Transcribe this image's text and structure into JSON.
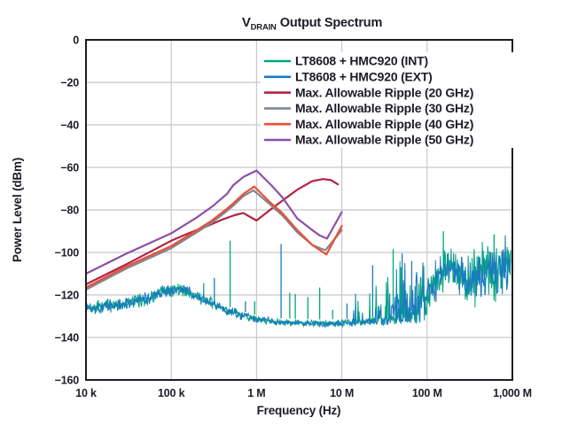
{
  "page": {
    "background": "#ffffff"
  },
  "chart_data": {
    "type": "line",
    "title": {
      "prefix": "V",
      "subscript": "DRAIN",
      "suffix": "Output Spectrum"
    },
    "xlabel": "Frequency (Hz)",
    "ylabel": "Power Level (dBm)",
    "x_scale": "log",
    "x_range_hz": [
      10000,
      1000000000
    ],
    "y_range_dbm": [
      -160,
      0
    ],
    "grid": true,
    "legend_position": "top-right",
    "colors": {
      "frame": "#1d1b26",
      "grid": "#c8c8c8",
      "text": "#1d1b26",
      "background": "#ffffff"
    },
    "x_ticks": [
      {
        "f": 10000.0,
        "label": "10 k"
      },
      {
        "f": 100000.0,
        "label": "100 k"
      },
      {
        "f": 1000000.0,
        "label": "1 M"
      },
      {
        "f": 10000000.0,
        "label": "10 M"
      },
      {
        "f": 100000000.0,
        "label": "100 M"
      },
      {
        "f": 1000000000.0,
        "label": "1,000 M"
      }
    ],
    "y_ticks": [
      {
        "v": 0,
        "label": "0"
      },
      {
        "v": -20,
        "label": "−20"
      },
      {
        "v": -40,
        "label": "−40"
      },
      {
        "v": -60,
        "label": "−60"
      },
      {
        "v": -80,
        "label": "−80"
      },
      {
        "v": -100,
        "label": "−100"
      },
      {
        "v": -120,
        "label": "−120"
      },
      {
        "v": -140,
        "label": "−140"
      },
      {
        "v": -160,
        "label": "−160"
      }
    ],
    "noise_envelope": [
      [
        10000.0,
        -126,
        3
      ],
      [
        25000.0,
        -124.5,
        3
      ],
      [
        50000.0,
        -122,
        3
      ],
      [
        80000.0,
        -118.5,
        3
      ],
      [
        120000.0,
        -117,
        3
      ],
      [
        180000.0,
        -119.5,
        2.8
      ],
      [
        260000.0,
        -123,
        2.5
      ],
      [
        400000.0,
        -126.5,
        2.2
      ],
      [
        600000.0,
        -129,
        2
      ],
      [
        1000000.0,
        -131.5,
        1.6
      ],
      [
        2000000.0,
        -133,
        1.4
      ],
      [
        6000000.0,
        -133.5,
        1.4
      ],
      [
        15000000.0,
        -133,
        1.6
      ],
      [
        30000000.0,
        -132,
        2
      ],
      [
        50000000.0,
        -131,
        2.5
      ],
      [
        70000000.0,
        -129,
        4
      ],
      [
        90000000.0,
        -124,
        8
      ],
      [
        120000000.0,
        -115,
        10
      ],
      [
        160000000.0,
        -108,
        9
      ],
      [
        200000000.0,
        -106,
        7
      ],
      [
        240000000.0,
        -110,
        9
      ],
      [
        300000000.0,
        -114,
        10
      ],
      [
        400000000.0,
        -112,
        11
      ],
      [
        550000000.0,
        -109,
        11
      ],
      [
        700000000.0,
        -110,
        11
      ],
      [
        850000000.0,
        -108,
        11
      ],
      [
        1000000000.0,
        -109,
        12
      ]
    ],
    "series": [
      {
        "id": "int",
        "name": "LT8608 + HMC920 (INT)",
        "color": "#00a87c",
        "kind": "noise",
        "seed": 42,
        "spread_scale": 1.12,
        "spikes": [
          [
            240000.0,
            -114.5
          ],
          [
            490000.0,
            -94.5
          ],
          [
            950000.0,
            -123
          ],
          [
            2450000.0,
            -119
          ],
          [
            2850000.0,
            -119.5
          ],
          [
            4000000.0,
            -121
          ],
          [
            5500000.0,
            -116.5
          ],
          [
            7800000.0,
            -127
          ],
          [
            40000000.0,
            -98.5
          ],
          [
            155000000.0,
            -90
          ],
          [
            610000000.0,
            -91.5
          ]
        ]
      },
      {
        "id": "ext",
        "name": "LT8608 + HMC920 (EXT)",
        "color": "#1a7bc0",
        "kind": "noise",
        "seed": 1337,
        "spread_scale": 1.0,
        "spikes": [
          [
            320000.0,
            -112
          ],
          [
            740000.0,
            -123
          ],
          [
            1940000.0,
            -96
          ],
          [
            11500000.0,
            -124
          ],
          [
            23000000.0,
            -106
          ],
          [
            51000000.0,
            -100.5
          ],
          [
            66000000.0,
            -104
          ]
        ]
      },
      {
        "id": "r20",
        "name": "Max. Allowable Ripple (20 GHz)",
        "color": "#b12245",
        "kind": "line",
        "points": [
          [
            10000.0,
            -115
          ],
          [
            30000.0,
            -105.5
          ],
          [
            100000.0,
            -94.5
          ],
          [
            160000.0,
            -91
          ],
          [
            250000.0,
            -88
          ],
          [
            400000.0,
            -84.5
          ],
          [
            550000.0,
            -82.5
          ],
          [
            700000.0,
            -81.5
          ],
          [
            1000000.0,
            -85
          ],
          [
            1500000.0,
            -79.5
          ],
          [
            2200000.0,
            -74.5
          ],
          [
            3000000.0,
            -70.5
          ],
          [
            4500000.0,
            -66.5
          ],
          [
            6000000.0,
            -65.5
          ],
          [
            7500000.0,
            -66
          ],
          [
            9000000.0,
            -68
          ]
        ]
      },
      {
        "id": "r30",
        "name": "Max. Allowable Ripple (30 GHz)",
        "color": "#828593",
        "kind": "line",
        "points": [
          [
            10000.0,
            -117.5
          ],
          [
            30000.0,
            -107.5
          ],
          [
            100000.0,
            -98
          ],
          [
            200000.0,
            -90.5
          ],
          [
            300000.0,
            -86
          ],
          [
            450000.0,
            -80.5
          ],
          [
            550000.0,
            -77.5
          ],
          [
            700000.0,
            -73.5
          ],
          [
            920000.0,
            -70.8
          ],
          [
            1400000.0,
            -77
          ],
          [
            2000000.0,
            -82.5
          ],
          [
            3000000.0,
            -90.5
          ],
          [
            4500000.0,
            -96.5
          ],
          [
            6400000.0,
            -99
          ],
          [
            10000000.0,
            -89.5
          ]
        ]
      },
      {
        "id": "r40",
        "name": "Max. Allowable Ripple (40 GHz)",
        "color": "#e94f33",
        "kind": "line",
        "points": [
          [
            10000.0,
            -116.5
          ],
          [
            30000.0,
            -106.5
          ],
          [
            100000.0,
            -97
          ],
          [
            200000.0,
            -89.5
          ],
          [
            300000.0,
            -85
          ],
          [
            450000.0,
            -79.5
          ],
          [
            550000.0,
            -76.5
          ],
          [
            700000.0,
            -72.5
          ],
          [
            940000.0,
            -69
          ],
          [
            1400000.0,
            -76
          ],
          [
            2000000.0,
            -81.5
          ],
          [
            3000000.0,
            -89.5
          ],
          [
            4500000.0,
            -96.5
          ],
          [
            6600000.0,
            -101
          ],
          [
            10000000.0,
            -87.5
          ]
        ]
      },
      {
        "id": "r50",
        "name": "Max. Allowable Ripple (50 GHz)",
        "color": "#8c4fa8",
        "kind": "line",
        "points": [
          [
            10000.0,
            -110
          ],
          [
            30000.0,
            -100.5
          ],
          [
            100000.0,
            -91
          ],
          [
            200000.0,
            -83.5
          ],
          [
            300000.0,
            -78.5
          ],
          [
            450000.0,
            -72.5
          ],
          [
            530000.0,
            -68.5
          ],
          [
            700000.0,
            -64.5
          ],
          [
            1000000.0,
            -61.5
          ],
          [
            1500000.0,
            -68.5
          ],
          [
            2000000.0,
            -74
          ],
          [
            3000000.0,
            -84
          ],
          [
            4500000.0,
            -89.5
          ],
          [
            5500000.0,
            -92
          ],
          [
            6700000.0,
            -93.5
          ],
          [
            10000000.0,
            -81
          ]
        ]
      }
    ]
  }
}
